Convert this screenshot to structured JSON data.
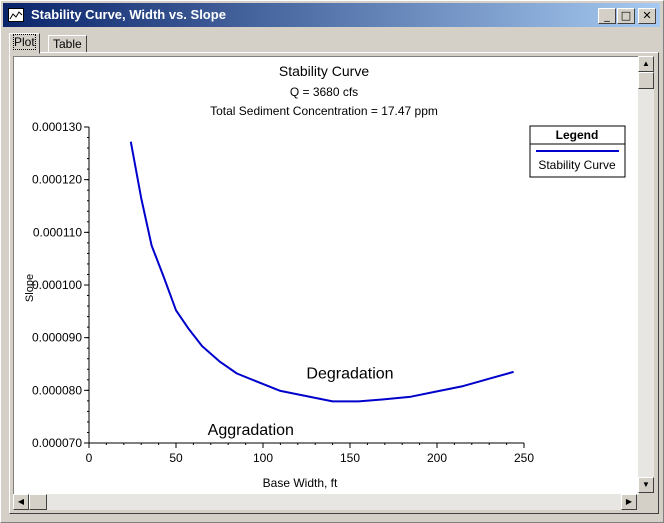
{
  "window": {
    "title": "Stability Curve, Width vs. Slope",
    "controls": {
      "minimize": "_",
      "maximize": "□",
      "close": "✕"
    }
  },
  "tabs": [
    {
      "label": "Plot",
      "active": true
    },
    {
      "label": "Table",
      "active": false
    }
  ],
  "chart_data": {
    "type": "line",
    "title": "Stability Curve",
    "subtitle1": "Q = 3680 cfs",
    "subtitle2": "Total Sediment Concentration = 17.47 ppm",
    "xlabel": "Base Width, ft",
    "ylabel": "Slope",
    "xlim": [
      0,
      250
    ],
    "ylim": [
      7e-05,
      0.00013
    ],
    "xticks": [
      0,
      50,
      100,
      150,
      200,
      250
    ],
    "xtick_labels": [
      "0",
      "50",
      "100",
      "150",
      "200",
      "250"
    ],
    "yticks": [
      7e-05,
      8e-05,
      9e-05,
      0.0001,
      0.00011,
      0.00012,
      0.00013
    ],
    "ytick_labels": [
      "0.000070",
      "0.000080",
      "0.000090",
      "0.000100",
      "0.000110",
      "0.000120",
      "0.000130"
    ],
    "grid": false,
    "legend": {
      "title": "Legend",
      "placement": "top-right"
    },
    "annotations": [
      {
        "text": "Degradation",
        "x": 150,
        "y": 8.22e-05
      },
      {
        "text": "Aggradation",
        "x": 93,
        "y": 7.15e-05
      }
    ],
    "series": [
      {
        "name": "Stability Curve",
        "color": "#0000cc",
        "x": [
          24,
          30,
          36,
          43,
          50,
          57,
          65,
          75,
          85,
          97,
          110,
          125,
          140,
          155,
          170,
          185,
          200,
          215,
          230,
          244
        ],
        "y": [
          0.0001272,
          0.0001165,
          0.0001075,
          0.0001015,
          9.52e-05,
          9.18e-05,
          8.84e-05,
          8.55e-05,
          8.32e-05,
          8.16e-05,
          7.99e-05,
          7.89e-05,
          7.79e-05,
          7.79e-05,
          7.83e-05,
          7.88e-05,
          7.98e-05,
          8.08e-05,
          8.22e-05,
          8.35e-05
        ]
      }
    ]
  }
}
